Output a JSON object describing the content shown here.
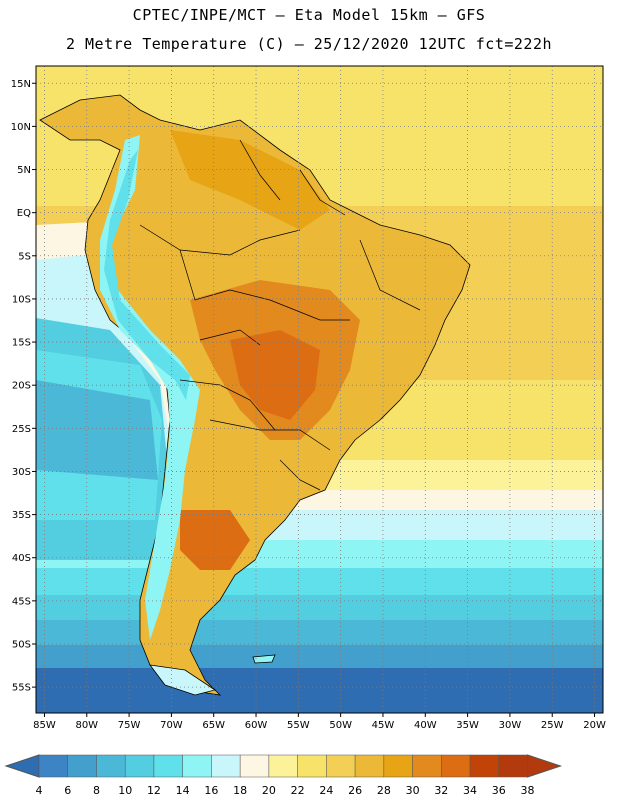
{
  "header": {
    "line1": "CPTEC/INPE/MCT –  Eta Model 15km – GFS",
    "line2": "2 Metre Temperature (C) – 25/12/2020 12UTC fct=222h"
  },
  "map": {
    "lat_range": [
      -58,
      17
    ],
    "lon_range": [
      -86,
      -19
    ],
    "lat_labels": [
      "15N",
      "10N",
      "5N",
      "EQ",
      "5S",
      "10S",
      "15S",
      "20S",
      "25S",
      "30S",
      "35S",
      "40S",
      "45S",
      "50S",
      "55S"
    ],
    "lat_values": [
      15,
      10,
      5,
      0,
      -5,
      -10,
      -15,
      -20,
      -25,
      -30,
      -35,
      -40,
      -45,
      -50,
      -55
    ],
    "lon_labels": [
      "85W",
      "80W",
      "75W",
      "70W",
      "65W",
      "60W",
      "55W",
      "50W",
      "45W",
      "40W",
      "35W",
      "30W",
      "25W",
      "20W"
    ],
    "lon_values": [
      -85,
      -80,
      -75,
      -70,
      -65,
      -60,
      -55,
      -50,
      -45,
      -40,
      -35,
      -30,
      -25,
      -20
    ]
  },
  "colorbar": {
    "levels": [
      "4",
      "6",
      "8",
      "10",
      "12",
      "14",
      "16",
      "18",
      "20",
      "22",
      "24",
      "26",
      "28",
      "30",
      "32",
      "34",
      "36",
      "38"
    ],
    "colors": [
      "#2f6db3",
      "#3d84c4",
      "#43a0cc",
      "#4cb8d8",
      "#53cde0",
      "#5fe0ea",
      "#8ef4f4",
      "#c9f6fa",
      "#fdf6e3",
      "#fbf29a",
      "#f8e36a",
      "#f3cf55",
      "#ecb837",
      "#e7a415",
      "#e28a1e",
      "#dc6d12",
      "#c14307",
      "#b33a0c",
      "#e28a1e"
    ]
  },
  "chart_data": {
    "type": "heatmap",
    "title": "2 Metre Temperature (C) – 25/12/2020 12UTC fct=222h",
    "variable": "2 Metre Temperature",
    "units": "C",
    "model": "Eta Model 15km – GFS",
    "x_range": [
      -86,
      -19
    ],
    "y_range": [
      -58,
      17
    ],
    "color_levels": [
      4,
      6,
      8,
      10,
      12,
      14,
      16,
      18,
      20,
      22,
      24,
      26,
      28,
      30,
      32,
      34,
      36,
      38
    ]
  }
}
